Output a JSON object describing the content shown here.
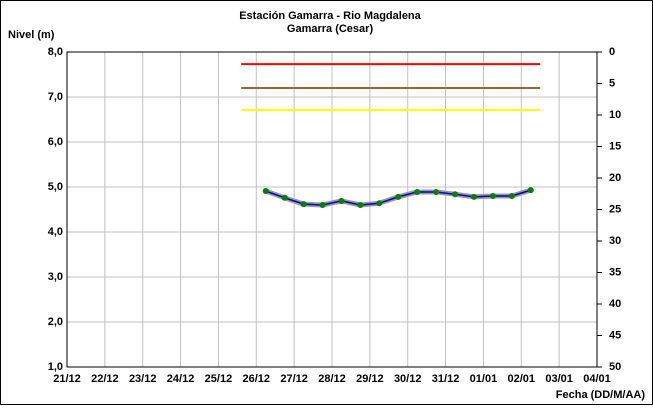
{
  "chart_data": {
    "type": "line",
    "title": "Estación Gamarra - Rio Magdalena",
    "subtitle": "Gamarra (Cesar)",
    "y_label": "Nivel (m)",
    "x_label": "Fecha (DD/M/AA)",
    "xlim": [
      0,
      14
    ],
    "xticks": [
      {
        "value": 0,
        "label": "21/12"
      },
      {
        "value": 1,
        "label": "22/12"
      },
      {
        "value": 2,
        "label": "23/12"
      },
      {
        "value": 3,
        "label": "24/12"
      },
      {
        "value": 4,
        "label": "25/12"
      },
      {
        "value": 5,
        "label": "26/12"
      },
      {
        "value": 6,
        "label": "27/12"
      },
      {
        "value": 7,
        "label": "28/12"
      },
      {
        "value": 8,
        "label": "29/12"
      },
      {
        "value": 9,
        "label": "30/12"
      },
      {
        "value": 10,
        "label": "31/12"
      },
      {
        "value": 11,
        "label": "01/01"
      },
      {
        "value": 12,
        "label": "02/01"
      },
      {
        "value": 13,
        "label": "03/01"
      },
      {
        "value": 14,
        "label": "04/01"
      }
    ],
    "ylim": [
      1,
      8
    ],
    "yticks": [
      {
        "value": 1,
        "label": "1,0"
      },
      {
        "value": 2,
        "label": "2,0"
      },
      {
        "value": 3,
        "label": "3,0"
      },
      {
        "value": 4,
        "label": "4,0"
      },
      {
        "value": 5,
        "label": "5,0"
      },
      {
        "value": 6,
        "label": "6,0"
      },
      {
        "value": 7,
        "label": "7,0"
      },
      {
        "value": 8,
        "label": "8,0"
      }
    ],
    "y2lim": [
      50,
      0
    ],
    "y2ticks": [
      0,
      5,
      10,
      15,
      20,
      25,
      30,
      35,
      40,
      45,
      50
    ],
    "grid": true,
    "thresholds": [
      {
        "color": "#ff0000",
        "x": [
          4.6,
          12.5
        ],
        "values": [
          7.73,
          7.73
        ]
      },
      {
        "color": "#996633",
        "x": [
          4.6,
          12.5
        ],
        "values": [
          7.2,
          7.2
        ]
      },
      {
        "color": "#ffff00",
        "x": [
          4.6,
          12.5
        ],
        "values": [
          6.71,
          6.71
        ]
      }
    ],
    "series": [
      {
        "color": "#0000cc",
        "marker_color": "#008000",
        "x": [
          5.25,
          5.75,
          6.25,
          6.75,
          7.25,
          7.75,
          8.25,
          8.75,
          9.25,
          9.75,
          10.25,
          10.75,
          11.25,
          11.75,
          12.25
        ],
        "values": [
          4.91,
          4.76,
          4.62,
          4.6,
          4.69,
          4.6,
          4.64,
          4.78,
          4.89,
          4.89,
          4.84,
          4.78,
          4.8,
          4.8,
          4.93
        ]
      }
    ]
  }
}
